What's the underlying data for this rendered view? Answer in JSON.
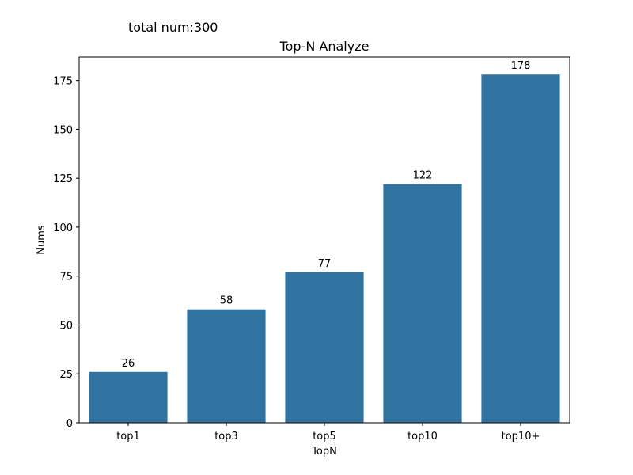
{
  "header": {
    "total_text": "total num:300"
  },
  "chart_data": {
    "type": "bar",
    "title": "Top-N Analyze",
    "xlabel": "TopN",
    "ylabel": "Nums",
    "categories": [
      "top1",
      "top3",
      "top5",
      "top10",
      "top10+"
    ],
    "values": [
      26,
      58,
      77,
      122,
      178
    ],
    "data_labels": [
      "26",
      "58",
      "77",
      "122",
      "178"
    ],
    "ylim": [
      0,
      187
    ],
    "yticks": [
      0,
      25,
      50,
      75,
      100,
      125,
      150,
      175
    ],
    "grid": false,
    "legend": "none",
    "bar_color": "#3274a1"
  }
}
